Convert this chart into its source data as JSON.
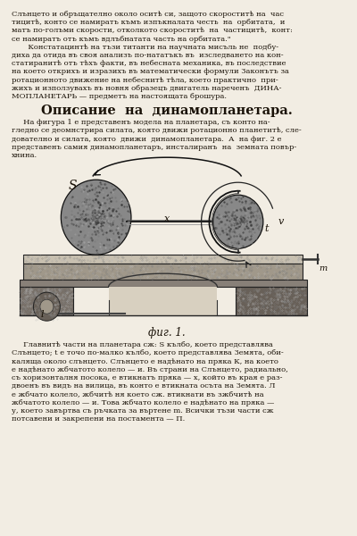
{
  "page_color": "#f2ede3",
  "text_color": "#1a1208",
  "top_text_lines": [
    "Слънцето и обръщателно около оситѣ си, защото скороститѣ на  час",
    "тицитѣ, конто се намиратъ къмъ изпъкналата честь  на  орбитата,  и",
    "матъ по-голъми скорости, отколкото скороститѣ  на  частицитѣ,  конт:",
    "се намиратъ отъ къмъ вдлъбнатата часть на орбитата.\"",
    "       Констатацинтѣ на тъзи титанти на научната мисъль не  подбу-",
    "диха да отида въ своя анализъ по-нататъкъ въ  изследването на кон-",
    "статиранитѣ отъ тѣхъ факти, въ небесната механика, въ последствие",
    "на което открихъ и изразихъ въ математически формули Законътъ за",
    "ротационното движение на небеснитѣ тѣла, което практично  при-",
    "жихъ и използувахъ въ новня образецъ двигатель нареченъ  ДИНА-",
    "МОПЛАНЕТАРЬ — предметъ на настоящата брошура."
  ],
  "section_title": "Описание  на  динамопланетара.",
  "section_text_lines": [
    "     На фигура 1 е представенъ модела на планетара, съ конто на-",
    "гледно се деомнстрира силата, която движи ротационно планетитѣ, сле-",
    "дователно и силата, която  движи  динамопланетара.  А  на фиг. 2 е",
    "представенъ самия динамопланетаръ, инсталиранъ  на  земната повър-",
    "хнина."
  ],
  "caption": "фuг. 1.",
  "bottom_text_lines": [
    "     Главнитѣ части на планетара сж: S кълбо, което представлява",
    "Слънцето; t е точо по-малко кълбо, което представлява Земята, оби-",
    "каляща около слънцето. Слънцето е надѣнато на пряка К, на което",
    "е надѣнато жбчатото колело — и. Въ страни на Слънцето, радиально,",
    "съ хоризонталня посока, е втикнатъ пряка — х, който въ края е раз-",
    "двоенъ въ видъ на вилица, въ конто е втикната осъта на Земята. Л",
    "е жбчато колело, жбчитѣ ня което сж. втикнати въ зжбчитѣ на",
    "жбчатото колело — и. Това жбчато колело е надѣнато на пряка —",
    "у, което завъртва съ ръчката за въртене m. Всички тъзи части сж",
    "потсавени и закрепени на постамента — П."
  ]
}
